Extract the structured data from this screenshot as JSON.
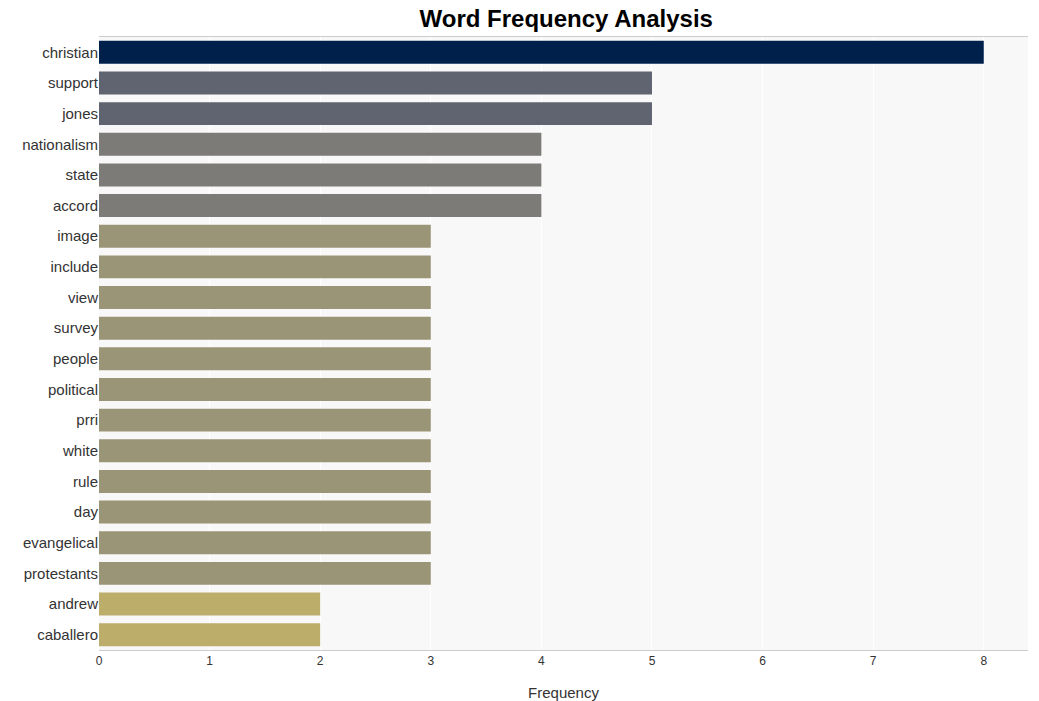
{
  "chart_data": {
    "type": "bar",
    "orientation": "horizontal",
    "title": "Word Frequency Analysis",
    "x_label": "Frequency",
    "categories": [
      "christian",
      "support",
      "jones",
      "nationalism",
      "state",
      "accord",
      "image",
      "include",
      "view",
      "survey",
      "people",
      "political",
      "prri",
      "white",
      "rule",
      "day",
      "evangelical",
      "protestants",
      "andrew",
      "caballero"
    ],
    "values": [
      8,
      5,
      5,
      4,
      4,
      4,
      3,
      3,
      3,
      3,
      3,
      3,
      3,
      3,
      3,
      3,
      3,
      3,
      2,
      2
    ],
    "colors": [
      "#00204c",
      "#5f6470",
      "#5f6470",
      "#7c7b78",
      "#7c7b78",
      "#7c7b78",
      "#9b9577",
      "#9b9577",
      "#9b9577",
      "#9b9577",
      "#9b9577",
      "#9b9577",
      "#9b9577",
      "#9b9577",
      "#9b9577",
      "#9b9577",
      "#9b9577",
      "#9b9577",
      "#bcad6b",
      "#bcad6b"
    ],
    "xlim": [
      0,
      8.4
    ],
    "xticks": [
      0,
      1,
      2,
      3,
      4,
      5,
      6,
      7,
      8
    ],
    "grid": true
  }
}
